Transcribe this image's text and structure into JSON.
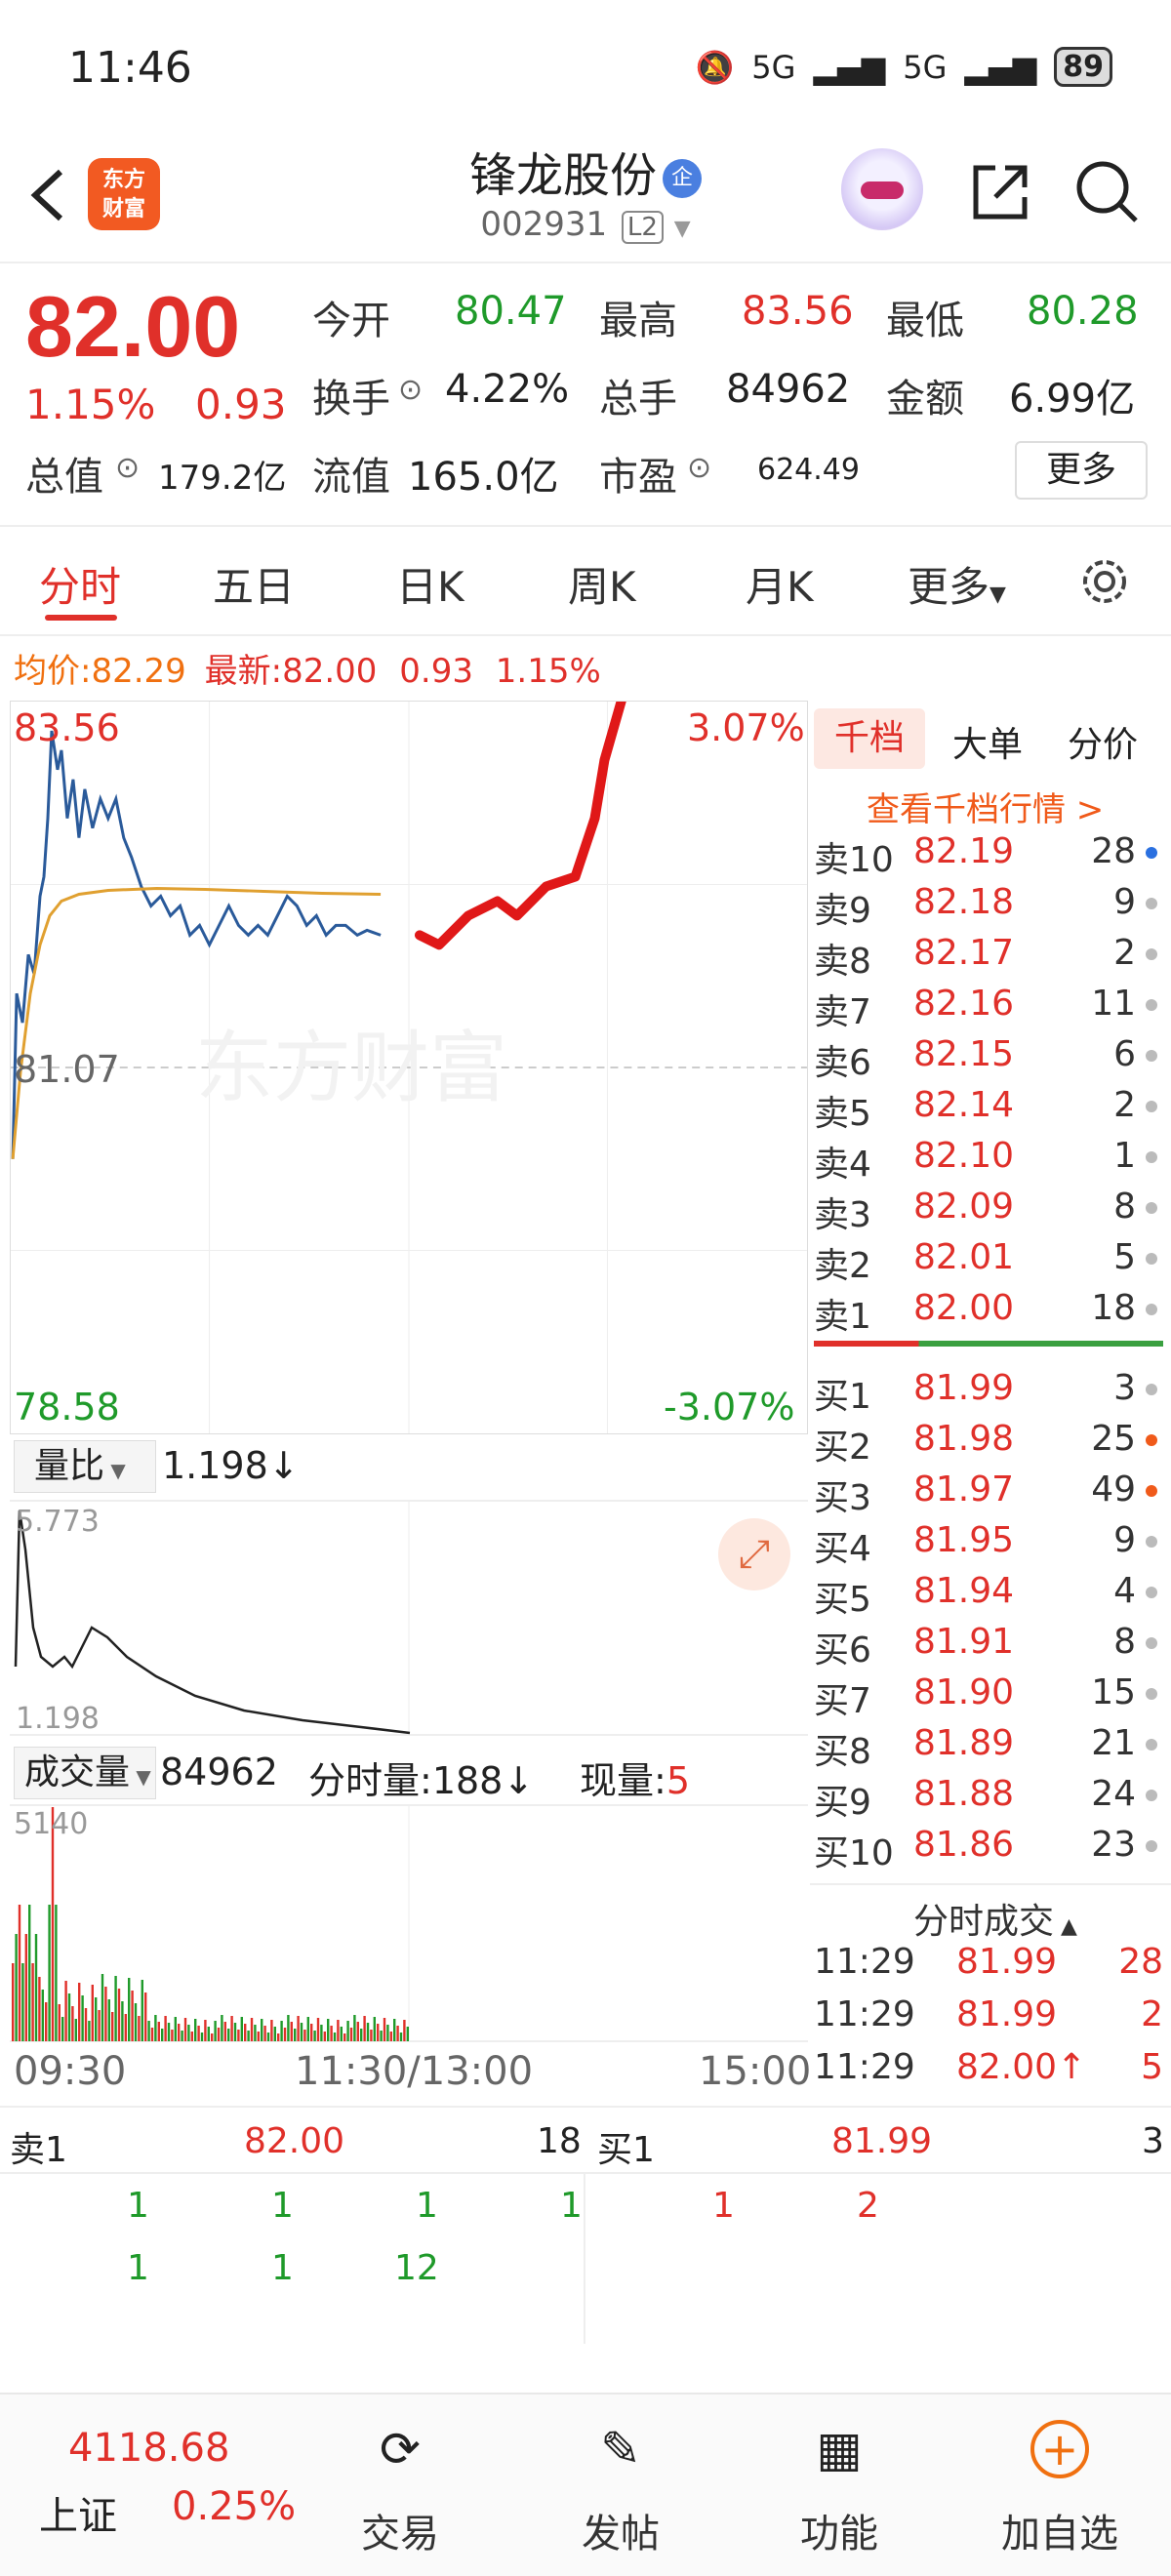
{
  "status": {
    "time": "11:46",
    "net1": "5G",
    "net2": "5G",
    "battery": "89"
  },
  "header": {
    "logo_line1": "东方",
    "logo_line2": "财富",
    "name": "锋龙股份",
    "badge": "企",
    "code": "002931",
    "level": "L2"
  },
  "quote": {
    "price": "82.00",
    "pct": "1.15%",
    "chg": "0.93",
    "open_label": "今开",
    "open": "80.47",
    "high_label": "最高",
    "high": "83.56",
    "low_label": "最低",
    "low": "80.28",
    "turnover_label": "换手",
    "turnover": "4.22%",
    "volume_label": "总手",
    "volume": "84962",
    "amount_label": "金额",
    "amount": "6.99亿",
    "mcap_label": "总值",
    "mcap": "179.2亿",
    "float_label": "流值",
    "float": "165.0亿",
    "pe_label": "市盈",
    "pe": "624.49",
    "more": "更多"
  },
  "tabs": [
    "分时",
    "五日",
    "日K",
    "周K",
    "月K",
    "更多"
  ],
  "avg_row": {
    "avg_label": "均价:",
    "avg": "82.29",
    "last_label": "最新:",
    "last": "82.00",
    "chg": "0.93",
    "pct": "1.15%"
  },
  "chart": {
    "top_price": "83.56",
    "top_pct": "3.07%",
    "mid_price": "81.07",
    "bottom_price": "78.58",
    "bottom_pct": "-3.07%",
    "watermark": "东方财富"
  },
  "subchart": {
    "label": "量比",
    "value": "1.198↓",
    "top": "5.773",
    "bottom": "1.198"
  },
  "volume": {
    "label": "成交量",
    "total": "84962",
    "minute_label": "分时量:",
    "minute_val": "188↓",
    "now_label": "现量:",
    "now_val": "5",
    "max": "5140"
  },
  "time_axis": {
    "start": "09:30",
    "mid": "11:30/13:00",
    "end": "15:00"
  },
  "book": {
    "tabs": [
      "千档",
      "大单",
      "分价"
    ],
    "view_link": "查看千档行情 >",
    "asks": [
      {
        "label": "卖10",
        "price": "82.19",
        "qty": "28",
        "dot": "blue"
      },
      {
        "label": "卖9",
        "price": "82.18",
        "qty": "9",
        "dot": "gray"
      },
      {
        "label": "卖8",
        "price": "82.17",
        "qty": "2",
        "dot": "gray"
      },
      {
        "label": "卖7",
        "price": "82.16",
        "qty": "11",
        "dot": "gray"
      },
      {
        "label": "卖6",
        "price": "82.15",
        "qty": "6",
        "dot": "gray"
      },
      {
        "label": "卖5",
        "price": "82.14",
        "qty": "2",
        "dot": "gray"
      },
      {
        "label": "卖4",
        "price": "82.10",
        "qty": "1",
        "dot": "gray"
      },
      {
        "label": "卖3",
        "price": "82.09",
        "qty": "8",
        "dot": "gray"
      },
      {
        "label": "卖2",
        "price": "82.01",
        "qty": "5",
        "dot": "gray"
      },
      {
        "label": "卖1",
        "price": "82.00",
        "qty": "18",
        "dot": "gray"
      }
    ],
    "bids": [
      {
        "label": "买1",
        "price": "81.99",
        "qty": "3",
        "dot": "gray"
      },
      {
        "label": "买2",
        "price": "81.98",
        "qty": "25",
        "dot": "orange"
      },
      {
        "label": "买3",
        "price": "81.97",
        "qty": "49",
        "dot": "orange"
      },
      {
        "label": "买4",
        "price": "81.95",
        "qty": "9",
        "dot": "gray"
      },
      {
        "label": "买5",
        "price": "81.94",
        "qty": "4",
        "dot": "gray"
      },
      {
        "label": "买6",
        "price": "81.91",
        "qty": "8",
        "dot": "gray"
      },
      {
        "label": "买7",
        "price": "81.90",
        "qty": "15",
        "dot": "gray"
      },
      {
        "label": "买8",
        "price": "81.89",
        "qty": "21",
        "dot": "gray"
      },
      {
        "label": "买9",
        "price": "81.88",
        "qty": "24",
        "dot": "gray"
      },
      {
        "label": "买10",
        "price": "81.86",
        "qty": "23",
        "dot": "gray"
      }
    ],
    "trades_title": "分时成交",
    "trades": [
      {
        "time": "11:29",
        "price": "81.99",
        "qty": "28"
      },
      {
        "time": "11:29",
        "price": "81.99",
        "qty": "2"
      },
      {
        "time": "11:29",
        "price": "82.00↑",
        "qty": "5"
      }
    ]
  },
  "ticks": {
    "ask_label": "卖1",
    "ask_price": "82.00",
    "ask_qty": "18",
    "bid_label": "买1",
    "bid_price": "81.99",
    "bid_qty": "3",
    "ask_row1": [
      "1",
      "1",
      "1",
      "1"
    ],
    "ask_row2": [
      "1",
      "1",
      "12"
    ],
    "bid_row1": [
      "1",
      "2"
    ]
  },
  "nav": {
    "index_value": "4118.68",
    "index_name": "上证",
    "index_pct": "0.25%",
    "items": [
      "交易",
      "发帖",
      "功能",
      "加自选"
    ]
  }
}
